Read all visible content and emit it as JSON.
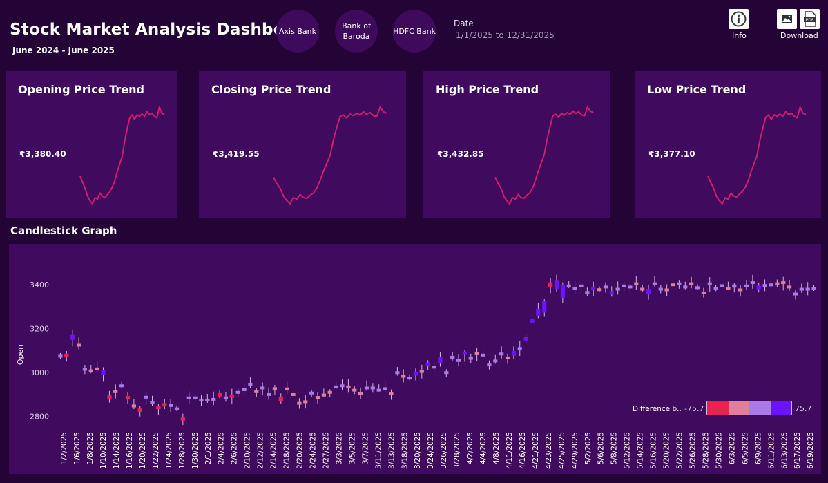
{
  "header": {
    "title": "Stock Market Analysis Dashboard",
    "subtitle": "June 2024 - June 2025",
    "banks": [
      "Axis Bank",
      "Bank of Baroda",
      "HDFC Bank"
    ],
    "date_label": "Date",
    "date_range": "1/1/2025 to 12/31/2025",
    "info_label": "Info",
    "download_label": "Download",
    "icons": [
      "info-icon",
      "image-icon",
      "pdf-icon"
    ]
  },
  "cards": [
    {
      "title": "Opening Price Trend",
      "value": "₹3,380.40"
    },
    {
      "title": "Closing Price Trend",
      "value": "₹3,419.55"
    },
    {
      "title": "High Price Trend",
      "value": "₹3,432.85"
    },
    {
      "title": "Low Price Trend",
      "value": "₹3,377.10"
    }
  ],
  "candlestick": {
    "title": "Candlestick Graph",
    "legend_title": "Difference b..",
    "legend_min": "-75.7",
    "legend_max": "75.7"
  },
  "colors": {
    "background": "#240336",
    "panel": "#400a5e",
    "trend_line": "#d01e6e",
    "ramp": [
      "#e8234f",
      "#de7f9e",
      "#a97ae8",
      "#6b12ff"
    ]
  },
  "chart_data": [
    {
      "type": "line",
      "title": "Opening Price Trend",
      "values": [
        3020,
        2980,
        2940,
        2890,
        2860,
        2840,
        2880,
        2870,
        2910,
        2890,
        2880,
        2900,
        2920,
        2950,
        2990,
        3050,
        3100,
        3150,
        3250,
        3330,
        3400,
        3420,
        3390,
        3420,
        3410,
        3425,
        3410,
        3440,
        3420,
        3430,
        3410,
        3400,
        3470,
        3430,
        3420
      ]
    },
    {
      "type": "line",
      "title": "Closing Price Trend",
      "values": [
        3020,
        2980,
        2950,
        2900,
        2870,
        2850,
        2890,
        2880,
        2910,
        2890,
        2885,
        2905,
        2920,
        2950,
        3000,
        3060,
        3110,
        3160,
        3260,
        3340,
        3410,
        3420,
        3400,
        3425,
        3415,
        3430,
        3420,
        3440,
        3425,
        3435,
        3415,
        3410,
        3470,
        3440,
        3430
      ]
    },
    {
      "type": "line",
      "title": "High Price Trend",
      "values": [
        3040,
        3000,
        2970,
        2920,
        2890,
        2870,
        2910,
        2900,
        2930,
        2910,
        2905,
        2925,
        2940,
        2970,
        3020,
        3080,
        3130,
        3180,
        3280,
        3360,
        3430,
        3440,
        3420,
        3445,
        3435,
        3450,
        3440,
        3460,
        3445,
        3455,
        3435,
        3430,
        3485,
        3460,
        3450
      ]
    },
    {
      "type": "line",
      "title": "Low Price Trend",
      "values": [
        3000,
        2960,
        2920,
        2870,
        2840,
        2820,
        2860,
        2850,
        2890,
        2870,
        2865,
        2885,
        2900,
        2930,
        2970,
        3030,
        3080,
        3130,
        3230,
        3310,
        3380,
        3400,
        3370,
        3400,
        3390,
        3405,
        3390,
        3420,
        3400,
        3410,
        3390,
        3380,
        3450,
        3410,
        3400
      ]
    },
    {
      "type": "candlestick",
      "title": "Candlestick Graph",
      "ylabel": "Open",
      "ylim": [
        2760,
        3560
      ],
      "yticks": [
        2800,
        3000,
        3200,
        3400
      ],
      "grid": false,
      "legend_placement": "bottom-right",
      "x_tick_labels": [
        "1/2/2025",
        "1/6/2025",
        "1/8/2025",
        "1/10/2025",
        "1/14/2025",
        "1/16/2025",
        "1/20/2025",
        "1/22/2025",
        "1/24/2025",
        "1/28/2025",
        "1/30/2025",
        "2/1/2025",
        "2/4/2025",
        "2/6/2025",
        "2/10/2025",
        "2/12/2025",
        "2/14/2025",
        "2/18/2025",
        "2/20/2025",
        "2/24/2025",
        "2/27/2025",
        "3/3/2025",
        "3/5/2025",
        "3/7/2025",
        "3/11/2025",
        "3/13/2025",
        "3/18/2025",
        "3/20/2025",
        "3/24/2025",
        "3/26/2025",
        "3/28/2025",
        "4/2/2025",
        "4/4/2025",
        "4/8/2025",
        "4/11/2025",
        "4/16/2025",
        "4/21/2025",
        "4/23/2025",
        "4/25/2025",
        "4/29/2025",
        "5/2/2025",
        "5/6/2025",
        "5/8/2025",
        "5/12/2025",
        "5/14/2025",
        "5/16/2025",
        "5/20/2025",
        "5/22/2025",
        "5/26/2025",
        "5/28/2025",
        "5/30/2025",
        "6/3/2025",
        "6/5/2025",
        "6/9/2025",
        "6/11/2025",
        "6/13/2025",
        "6/17/2025",
        "6/19/2025"
      ],
      "open": [
        3070,
        3082,
        3148,
        3130,
        3018,
        3013,
        3022,
        2990,
        2895,
        2918,
        2940,
        2892,
        2853,
        2835,
        2885,
        2865,
        2845,
        2860,
        2844,
        2832,
        2796,
        2885,
        2886,
        2875,
        2873,
        2874,
        2905,
        2885,
        2897,
        2905,
        2918,
        2938,
        2918,
        2928,
        2893,
        2932,
        2886,
        2931,
        2905,
        2865,
        2872,
        2906,
        2892,
        2903,
        2915,
        2932,
        2940,
        2940,
        2925,
        2910,
        2928,
        2930,
        2920,
        2925,
        2910,
        3000,
        2988,
        2975,
        2985,
        3010,
        3030,
        3025,
        3040,
        3002,
        3064,
        3048,
        3080,
        3060,
        3091,
        3078,
        3037,
        3048,
        3080,
        3072,
        3075,
        3102,
        3145,
        3225,
        3255,
        3272,
        3410,
        3380,
        3340,
        3395,
        3378,
        3390,
        3365,
        3375,
        3383,
        3388,
        3355,
        3375,
        3390,
        3385,
        3410,
        3385,
        3355,
        3400,
        3380,
        3382,
        3405,
        3408,
        3390,
        3410,
        3385,
        3368,
        3398,
        3385,
        3398,
        3390,
        3386,
        3382,
        3392,
        3410,
        3378,
        3395,
        3392,
        3410,
        3415,
        3395,
        3360,
        3375,
        3375,
        3380
      ],
      "close": [
        3080,
        3068,
        3170,
        3120,
        3020,
        3007,
        3020,
        3010,
        2880,
        2910,
        2945,
        2880,
        2842,
        2820,
        2893,
        2868,
        2832,
        2845,
        2855,
        2840,
        2780,
        2890,
        2890,
        2880,
        2880,
        2883,
        2890,
        2890,
        2884,
        2915,
        2927,
        2950,
        2910,
        2935,
        2905,
        2925,
        2870,
        2925,
        2901,
        2855,
        2867,
        2912,
        2886,
        2900,
        2910,
        2940,
        2945,
        2938,
        2917,
        2905,
        2935,
        2935,
        2925,
        2932,
        2905,
        3005,
        2980,
        2980,
        3000,
        3005,
        3045,
        3030,
        3070,
        3005,
        3075,
        3060,
        3095,
        3070,
        3080,
        3085,
        3040,
        3058,
        3090,
        3070,
        3098,
        3115,
        3160,
        3245,
        3290,
        3325,
        3390,
        3420,
        3400,
        3400,
        3390,
        3400,
        3370,
        3390,
        3383,
        3395,
        3370,
        3385,
        3400,
        3395,
        3405,
        3380,
        3380,
        3410,
        3385,
        3378,
        3405,
        3410,
        3395,
        3406,
        3392,
        3360,
        3410,
        3390,
        3401,
        3388,
        3400,
        3378,
        3400,
        3415,
        3395,
        3402,
        3405,
        3408,
        3405,
        3388,
        3363,
        3385,
        3385,
        3388
      ]
    }
  ]
}
